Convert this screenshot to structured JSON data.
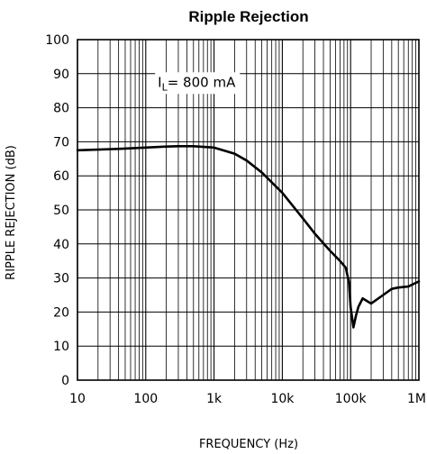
{
  "chart_data": {
    "type": "line",
    "title": "Ripple Rejection",
    "xlabel": "FREQUENCY (Hz)",
    "ylabel": "RIPPLE REJECTION (dB)",
    "x_scale": "log",
    "xlim": [
      10,
      1000000
    ],
    "ylim": [
      0,
      100
    ],
    "grid": true,
    "x_ticks": [
      10,
      100,
      1000,
      10000,
      100000,
      1000000
    ],
    "x_tick_labels": [
      "10",
      "100",
      "1k",
      "10k",
      "100k",
      "1M"
    ],
    "y_ticks": [
      0,
      10,
      20,
      30,
      40,
      50,
      60,
      70,
      80,
      90,
      100
    ],
    "y_tick_labels": [
      "0",
      "10",
      "20",
      "30",
      "40",
      "50",
      "60",
      "70",
      "80",
      "90",
      "100"
    ],
    "annotation": {
      "main": "I",
      "subscript": "L",
      "rest": "= 800 mA"
    },
    "line_color": "#000000",
    "series": [
      {
        "x": [
          10,
          20,
          50,
          100,
          200,
          300,
          500,
          1000,
          2000,
          3000,
          5000,
          10000,
          20000,
          30000,
          50000,
          70000,
          85000,
          95000,
          100000,
          110000,
          120000,
          130000,
          150000,
          200000,
          300000,
          400000,
          500000,
          700000,
          1000000
        ],
        "y": [
          67.5,
          67.7,
          68.0,
          68.3,
          68.6,
          68.7,
          68.7,
          68.3,
          66.5,
          64.5,
          61.0,
          55.0,
          47.5,
          43.0,
          38.0,
          35.0,
          33.0,
          28.5,
          21.5,
          15.5,
          19.0,
          21.5,
          24.0,
          22.5,
          25.0,
          26.8,
          27.2,
          27.5,
          29.0
        ]
      }
    ]
  }
}
